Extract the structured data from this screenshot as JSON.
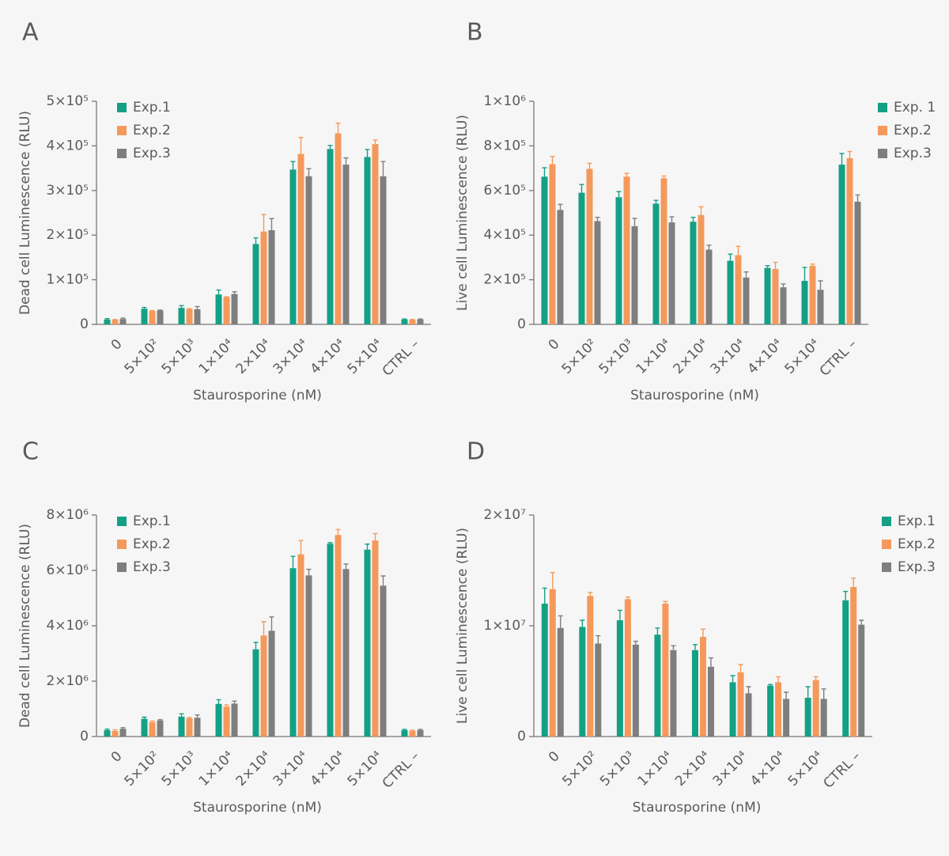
{
  "chart_data": [
    {
      "type": "bar",
      "panel_label": "A",
      "ylabel": "Dead cell Luminescence (RLU)",
      "xlabel": "Staurosporine (nM)",
      "categories": [
        "0",
        "5×10²",
        "5×10³",
        "1×10⁴",
        "2×10⁴",
        "3×10⁴",
        "4×10⁴",
        "5×10⁴",
        "CTRL –"
      ],
      "ylim": [
        0,
        500000
      ],
      "yticks": [
        0,
        {
          "value": 100000,
          "label": "1×10⁵"
        },
        {
          "value": 200000,
          "label": "2×10⁵"
        },
        {
          "value": 300000,
          "label": "3×10⁵"
        },
        {
          "value": 400000,
          "label": "4×10⁵"
        },
        {
          "value": 500000,
          "label": "5×10⁵"
        }
      ],
      "legend": "upper left",
      "series": [
        {
          "name": "Exp.1",
          "color": "#14a085",
          "values": [
            11000,
            35000,
            37000,
            67000,
            180000,
            347000,
            393000,
            375000,
            11000
          ],
          "errors": [
            2000,
            3000,
            5000,
            10000,
            14000,
            18000,
            8000,
            17000,
            1000
          ]
        },
        {
          "name": "Exp.2",
          "color": "#f4995b",
          "values": [
            10000,
            30000,
            34000,
            61000,
            208000,
            382000,
            428000,
            404000,
            10000
          ],
          "errors": [
            1000,
            1000,
            1000,
            1000,
            38000,
            37000,
            23000,
            9000,
            1000
          ]
        },
        {
          "name": "Exp.3",
          "color": "#7e7e7e",
          "values": [
            12000,
            31000,
            34000,
            68000,
            211000,
            332000,
            358000,
            332000,
            11000
          ],
          "errors": [
            2000,
            1000,
            6000,
            5000,
            26000,
            17000,
            15000,
            33000,
            1000
          ]
        }
      ]
    },
    {
      "type": "bar",
      "panel_label": "B",
      "ylabel": "Live cell Luminescence (RLU)",
      "xlabel": "Staurosporine (nM)",
      "categories": [
        "0",
        "5×10²",
        "5×10³",
        "1×10⁴",
        "2×10⁴",
        "3×10⁴",
        "4×10⁴",
        "5×10⁴",
        "CTRL –"
      ],
      "ylim": [
        0,
        1000000
      ],
      "yticks": [
        0,
        {
          "value": 200000,
          "label": "2×10⁵"
        },
        {
          "value": 400000,
          "label": "4×10⁵"
        },
        {
          "value": 600000,
          "label": "6×10⁵"
        },
        {
          "value": 800000,
          "label": "8×10⁵"
        },
        {
          "value": 1000000,
          "label": "1×10⁶"
        }
      ],
      "legend": "upper right",
      "series": [
        {
          "name": "Exp. 1",
          "color": "#14a085",
          "values": [
            662000,
            590000,
            570000,
            541000,
            460000,
            285000,
            253000,
            195000,
            716000
          ],
          "errors": [
            40000,
            37000,
            25000,
            15000,
            20000,
            30000,
            10000,
            60000,
            50000
          ]
        },
        {
          "name": "Exp.2",
          "color": "#f4995b",
          "values": [
            718000,
            697000,
            662000,
            655000,
            490000,
            310000,
            248000,
            262000,
            745000
          ],
          "errors": [
            35000,
            25000,
            15000,
            10000,
            37000,
            40000,
            30000,
            8000,
            30000
          ]
        },
        {
          "name": "Exp.3",
          "color": "#7e7e7e",
          "values": [
            513000,
            463000,
            440000,
            457000,
            335000,
            210000,
            166000,
            155000,
            550000
          ],
          "errors": [
            25000,
            17000,
            35000,
            25000,
            20000,
            25000,
            15000,
            40000,
            30000
          ]
        }
      ]
    },
    {
      "type": "bar",
      "panel_label": "C",
      "ylabel": "Dead cell Luminescence (RLU)",
      "xlabel": "Staurosporine (nM)",
      "categories": [
        "0",
        "5×10²",
        "5×10³",
        "1×10⁴",
        "2×10⁴",
        "3×10⁴",
        "4×10⁴",
        "5×10⁴",
        "CTRL –"
      ],
      "ylim": [
        0,
        8000000
      ],
      "yticks": [
        0,
        {
          "value": 2000000,
          "label": "2×10⁶"
        },
        {
          "value": 4000000,
          "label": "4×10⁶"
        },
        {
          "value": 6000000,
          "label": "6×10⁶"
        },
        {
          "value": 8000000,
          "label": "8×10⁶"
        }
      ],
      "legend": "upper left",
      "series": [
        {
          "name": "Exp.1",
          "color": "#14a085",
          "values": [
            230000,
            640000,
            720000,
            1180000,
            3150000,
            6080000,
            6960000,
            6750000,
            230000
          ],
          "errors": [
            40000,
            60000,
            100000,
            150000,
            250000,
            430000,
            40000,
            200000,
            30000
          ]
        },
        {
          "name": "Exp.2",
          "color": "#f4995b",
          "values": [
            200000,
            520000,
            660000,
            1080000,
            3650000,
            6580000,
            7280000,
            7080000,
            200000
          ],
          "errors": [
            40000,
            40000,
            30000,
            60000,
            500000,
            500000,
            200000,
            250000,
            30000
          ]
        },
        {
          "name": "Exp.3",
          "color": "#7e7e7e",
          "values": [
            280000,
            580000,
            680000,
            1190000,
            3820000,
            5820000,
            6050000,
            5450000,
            230000
          ],
          "errors": [
            40000,
            30000,
            100000,
            90000,
            500000,
            220000,
            180000,
            350000,
            30000
          ]
        }
      ]
    },
    {
      "type": "bar",
      "panel_label": "D",
      "ylabel": "Live cell Luminescence (RLU)",
      "xlabel": "Staurosporine (nM)",
      "categories": [
        "0",
        "5×10²",
        "5×10³",
        "1×10⁴",
        "2×10⁴",
        "3×10⁴",
        "4×10⁴",
        "5×10⁴",
        "CTRL –"
      ],
      "ylim": [
        0,
        20000000
      ],
      "yticks": [
        0,
        {
          "value": 10000000,
          "label": "1×10⁷"
        },
        {
          "value": 20000000,
          "label": "2×10⁷"
        }
      ],
      "legend": "upper right",
      "series": [
        {
          "name": "Exp.1",
          "color": "#14a085",
          "values": [
            12000000,
            9900000,
            10500000,
            9200000,
            7800000,
            4900000,
            4600000,
            3500000,
            12300000
          ],
          "errors": [
            1400000,
            600000,
            900000,
            600000,
            500000,
            600000,
            100000,
            1000000,
            800000
          ]
        },
        {
          "name": "Exp.2",
          "color": "#f4995b",
          "values": [
            13300000,
            12700000,
            12400000,
            12000000,
            9000000,
            5800000,
            4900000,
            5100000,
            13500000
          ],
          "errors": [
            1500000,
            300000,
            200000,
            200000,
            700000,
            700000,
            500000,
            300000,
            800000
          ]
        },
        {
          "name": "Exp.3",
          "color": "#7e7e7e",
          "values": [
            9800000,
            8400000,
            8300000,
            7800000,
            6300000,
            3900000,
            3400000,
            3400000,
            10100000
          ],
          "errors": [
            1100000,
            700000,
            300000,
            400000,
            800000,
            600000,
            600000,
            900000,
            400000
          ]
        }
      ]
    }
  ]
}
